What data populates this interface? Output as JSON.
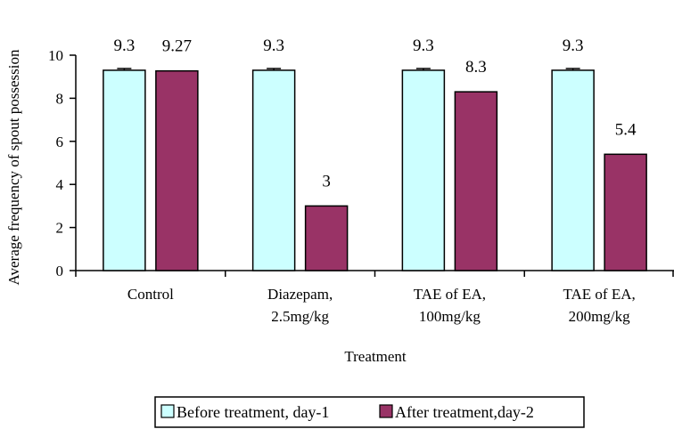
{
  "chart_data": {
    "type": "bar",
    "xlabel": "Treatment",
    "ylabel": "Average frequency of spout possession",
    "ylim": [
      0,
      10
    ],
    "yticks": [
      0,
      2,
      4,
      6,
      8,
      10
    ],
    "categories": [
      [
        "Control"
      ],
      [
        "Diazepam,",
        "2.5mg/kg"
      ],
      [
        "TAE of EA,",
        "100mg/kg"
      ],
      [
        "TAE of EA,",
        "200mg/kg"
      ]
    ],
    "series": [
      {
        "name": "Before treatment, day-1",
        "color": "#ccffff",
        "values": [
          9.3,
          9.3,
          9.3,
          9.3
        ],
        "labels": [
          "9.3",
          "9.3",
          "9.3",
          "9.3"
        ],
        "error_bars": true
      },
      {
        "name": "After treatment,day-2",
        "color": "#993366",
        "values": [
          9.27,
          3,
          8.3,
          5.4
        ],
        "labels": [
          "9.27",
          "3",
          "8.3",
          "5.4"
        ],
        "error_bars": false
      }
    ],
    "legend": "bottom",
    "grid": false
  }
}
